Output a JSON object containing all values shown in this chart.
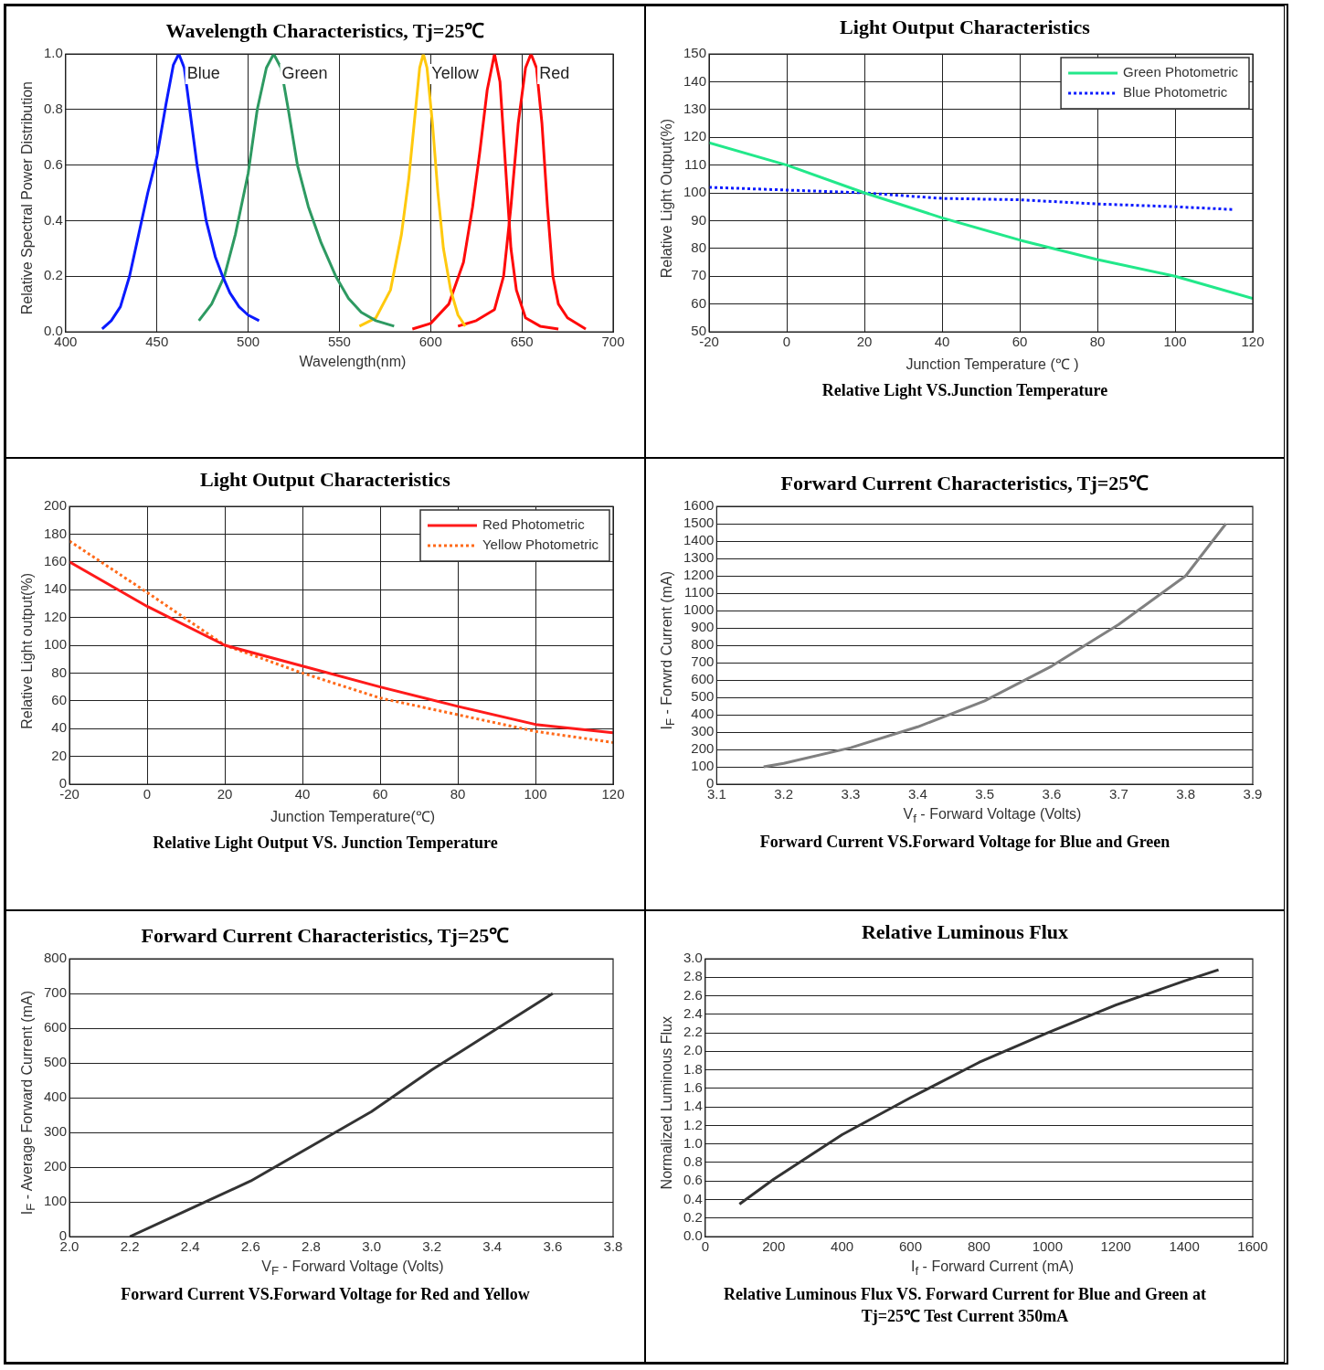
{
  "chart_data": [
    {
      "type": "line",
      "title": "Wavelength Characteristics, Tj=25℃",
      "xlabel": "Wavelength(nm)",
      "ylabel": "Relative Spectral Power Distribution",
      "xlim": [
        400,
        700
      ],
      "xticks": [
        400,
        450,
        500,
        550,
        600,
        650,
        700
      ],
      "ylim": [
        0,
        1
      ],
      "yticks": [
        {
          "value": 0,
          "label": "0.0"
        },
        0.2,
        0.4,
        0.6,
        0.8,
        {
          "value": 1,
          "label": "1.0"
        }
      ],
      "grid": true,
      "marker": "none",
      "line_style": "solid",
      "series": [
        {
          "name": "Blue",
          "color": "#0a1aff",
          "x": [
            420,
            425,
            430,
            435,
            440,
            445,
            450,
            455,
            459,
            462,
            465,
            468,
            472,
            477,
            482,
            486,
            490,
            495,
            500,
            506
          ],
          "values": [
            0.01,
            0.04,
            0.09,
            0.2,
            0.35,
            0.5,
            0.63,
            0.82,
            0.96,
            1.0,
            0.95,
            0.8,
            0.6,
            0.4,
            0.27,
            0.2,
            0.14,
            0.09,
            0.06,
            0.04
          ]
        },
        {
          "name": "Green",
          "color": "#2e9a62",
          "x": [
            473,
            480,
            487,
            493,
            500,
            505,
            510,
            514,
            518,
            522,
            527,
            533,
            540,
            548,
            555,
            562,
            570,
            580
          ],
          "values": [
            0.04,
            0.1,
            0.2,
            0.35,
            0.57,
            0.8,
            0.95,
            1.0,
            0.95,
            0.8,
            0.6,
            0.45,
            0.32,
            0.2,
            0.12,
            0.07,
            0.04,
            0.02
          ]
        },
        {
          "name": "Yellow",
          "color": "#ffc90e",
          "x": [
            561,
            570,
            578,
            584,
            588,
            591,
            594,
            596,
            598,
            601,
            604,
            607,
            611,
            615,
            619
          ],
          "values": [
            0.02,
            0.05,
            0.15,
            0.35,
            0.55,
            0.75,
            0.95,
            1.0,
            0.95,
            0.75,
            0.5,
            0.3,
            0.15,
            0.06,
            0.02
          ]
        },
        {
          "color": "#ff0a0a",
          "x": [
            590,
            600,
            610,
            618,
            623,
            627,
            631,
            635,
            638,
            641,
            644,
            647,
            652,
            660,
            670
          ],
          "values": [
            0.01,
            0.03,
            0.1,
            0.25,
            0.45,
            0.65,
            0.87,
            1.0,
            0.9,
            0.6,
            0.3,
            0.15,
            0.05,
            0.02,
            0.01
          ]
        },
        {
          "name": "Red",
          "color": "#ff0a0a",
          "x": [
            615,
            625,
            635,
            640,
            644,
            648,
            652,
            655,
            658,
            661,
            664,
            667,
            670,
            675,
            685
          ],
          "values": [
            0.02,
            0.04,
            0.08,
            0.2,
            0.45,
            0.75,
            0.95,
            1.0,
            0.95,
            0.75,
            0.45,
            0.2,
            0.1,
            0.05,
            0.01
          ]
        }
      ]
    },
    {
      "type": "line",
      "title": "Light Output Characteristics",
      "xlabel": "Junction Temperature (℃ )",
      "ylabel": "Relative Light Output(%)",
      "xlim": [
        -20,
        120
      ],
      "xticks": [
        -20,
        0,
        20,
        40,
        60,
        80,
        100,
        120
      ],
      "ylim": [
        50,
        150
      ],
      "yticks": [
        50,
        60,
        70,
        80,
        90,
        100,
        110,
        120,
        130,
        140,
        150
      ],
      "grid": true,
      "marker": "none",
      "legend": "top right",
      "annotations": [
        "Relative Light VS.Junction Temperature"
      ],
      "series": [
        {
          "name": "Green Photometric",
          "color": "#22e88a",
          "line_style": "solid",
          "x": [
            -20,
            0,
            20,
            40,
            60,
            80,
            100,
            120
          ],
          "values": [
            118,
            110,
            100,
            91,
            83,
            76,
            70,
            62
          ]
        },
        {
          "name": "Blue Photometric",
          "color": "#0a1aff",
          "line_style": "dotted",
          "x": [
            -20,
            0,
            20,
            40,
            60,
            80,
            100,
            115
          ],
          "values": [
            102,
            101,
            100,
            98,
            97.5,
            96,
            95,
            94
          ]
        }
      ]
    },
    {
      "type": "line",
      "title": "Light Output Characteristics",
      "xlabel": "Junction Temperature(℃)",
      "ylabel": "Relative Light output(%)",
      "xlim": [
        -20,
        120
      ],
      "xticks": [
        -20,
        0,
        20,
        40,
        60,
        80,
        100,
        120
      ],
      "ylim": [
        0,
        200
      ],
      "yticks": [
        0,
        20,
        40,
        60,
        80,
        100,
        120,
        140,
        160,
        180,
        200
      ],
      "grid": true,
      "marker": "none",
      "legend": "top right",
      "annotations": [
        "Relative Light Output VS. Junction Temperature"
      ],
      "series": [
        {
          "name": "Red Photometric",
          "color": "#ff1a1a",
          "line_style": "solid",
          "x": [
            -20,
            0,
            20,
            40,
            60,
            80,
            100,
            120
          ],
          "values": [
            160,
            128,
            100,
            85,
            70,
            56,
            43,
            37
          ]
        },
        {
          "name": "Yellow Photometric",
          "color": "#ff6a1a",
          "line_style": "dotted",
          "x": [
            -20,
            0,
            20,
            40,
            60,
            80,
            100,
            120
          ],
          "values": [
            175,
            138,
            100,
            80,
            62,
            50,
            38,
            30
          ]
        }
      ]
    },
    {
      "type": "line",
      "title": "Forward Current Characteristics, Tj=25℃",
      "xlabel": "V$_{f}$ - Forward Voltage (Volts)",
      "ylabel": "I$_{F}$ - Forwrd Current (mA)",
      "xlim": [
        3.1,
        3.9
      ],
      "xticks": [
        3.1,
        3.2,
        3.3,
        3.4,
        3.5,
        3.6,
        3.7,
        3.8,
        3.9
      ],
      "ylim": [
        0,
        1600
      ],
      "yticks": [
        0,
        100,
        200,
        300,
        400,
        500,
        600,
        700,
        800,
        900,
        1000,
        1100,
        1200,
        1300,
        1400,
        1500,
        1600
      ],
      "grid": "y",
      "marker": "none",
      "line_style": "solid",
      "annotations": [
        "Forward Current VS.Forward Voltage for Blue and Green"
      ],
      "series": [
        {
          "color": "#808080",
          "x": [
            3.17,
            3.2,
            3.3,
            3.4,
            3.5,
            3.6,
            3.7,
            3.8,
            3.86
          ],
          "values": [
            100,
            120,
            210,
            330,
            480,
            680,
            920,
            1200,
            1500
          ]
        }
      ]
    },
    {
      "type": "line",
      "title": "Forward Current Characteristics, Tj=25℃",
      "xlabel": "V$_{F}$ - Forward Voltage (Volts)",
      "ylabel": "I$_{F}$ - Average Forward Current (mA)",
      "xlim": [
        2.0,
        3.8
      ],
      "xticks": [
        {
          "value": 2,
          "label": "2.0"
        },
        2.2,
        2.4,
        2.6,
        2.8,
        {
          "value": 3,
          "label": "3.0"
        },
        3.2,
        3.4,
        3.6,
        3.8
      ],
      "ylim": [
        0,
        800
      ],
      "yticks": [
        0,
        100,
        200,
        300,
        400,
        500,
        600,
        700,
        800
      ],
      "grid": "y",
      "marker": "none",
      "line_style": "solid",
      "annotations": [
        "Forward Current VS.Forward Voltage for Red and Yellow"
      ],
      "series": [
        {
          "color": "#333333",
          "x": [
            2.2,
            2.4,
            2.6,
            2.8,
            3.0,
            3.2,
            3.4,
            3.6
          ],
          "values": [
            0,
            80,
            160,
            260,
            360,
            480,
            590,
            700
          ]
        }
      ]
    },
    {
      "type": "line",
      "title": "Relative Luminous Flux",
      "xlabel": "I$_{f}$ - Forward Current (mA)",
      "ylabel": "Normalized Luminous Flux",
      "xlim": [
        0,
        1600
      ],
      "xticks": [
        0,
        200,
        400,
        600,
        800,
        1000,
        1200,
        1400,
        1600
      ],
      "ylim": [
        0,
        3
      ],
      "yticks": [
        {
          "value": 0,
          "label": "0.0"
        },
        0.2,
        0.4,
        0.6,
        0.8,
        {
          "value": 1,
          "label": "1.0"
        },
        1.2,
        1.4,
        1.6,
        1.8,
        {
          "value": 2,
          "label": "2.0"
        },
        2.2,
        2.4,
        2.6,
        2.8,
        {
          "value": 3,
          "label": "3.0"
        }
      ],
      "grid": "y",
      "marker": "none",
      "line_style": "solid",
      "annotations": [
        "Relative Luminous Flux VS. Forward Current for Blue and Green at Tj=25℃ Test Current 350mA"
      ],
      "series": [
        {
          "color": "#333333",
          "x": [
            100,
            200,
            400,
            600,
            800,
            1000,
            1200,
            1400,
            1500
          ],
          "values": [
            0.35,
            0.62,
            1.1,
            1.5,
            1.88,
            2.2,
            2.5,
            2.76,
            2.88
          ]
        }
      ]
    }
  ]
}
